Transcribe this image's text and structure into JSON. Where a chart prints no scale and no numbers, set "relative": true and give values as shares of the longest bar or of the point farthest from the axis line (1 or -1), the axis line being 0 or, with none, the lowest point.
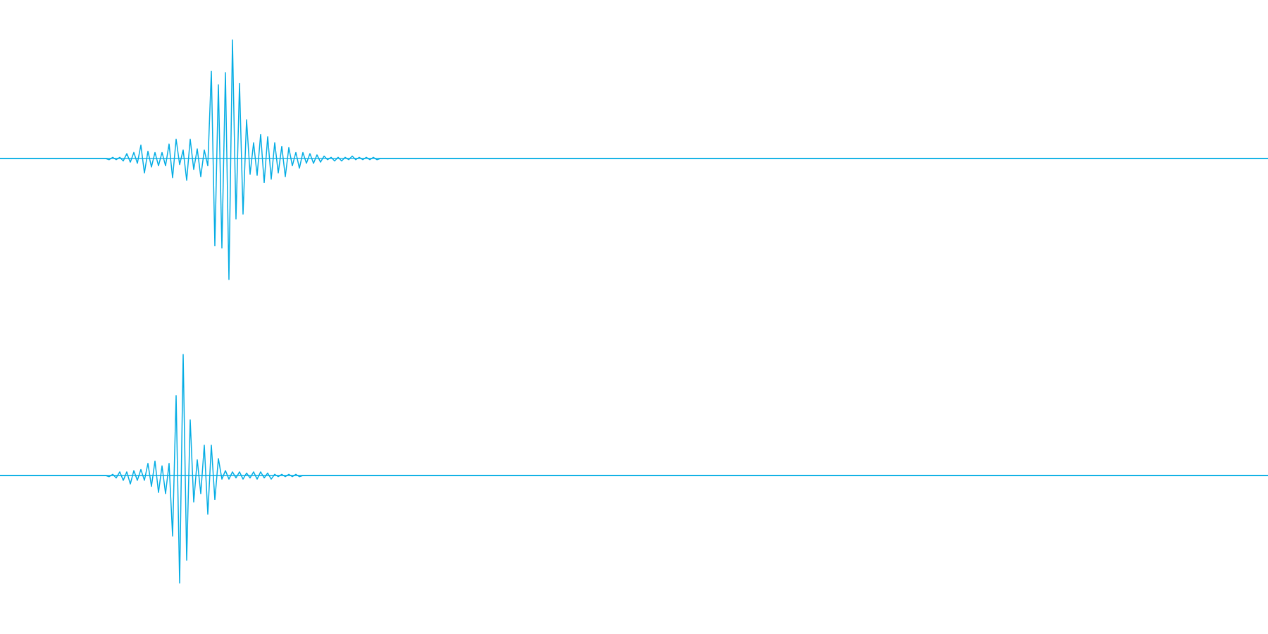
{
  "chart_data": [
    {
      "type": "line",
      "relative": true,
      "color": "#05ade4",
      "categories": [
        null,
        null,
        null,
        null,
        null,
        null,
        null,
        null,
        null,
        null,
        null,
        null,
        null,
        null,
        null,
        null,
        null,
        null,
        null,
        null,
        null,
        null,
        null,
        null,
        null,
        null,
        null,
        null,
        null,
        null,
        null,
        null,
        null,
        null,
        null,
        null,
        null,
        null,
        null,
        null,
        null,
        null,
        null,
        null,
        null,
        null,
        null,
        null,
        null,
        null,
        null,
        null,
        null,
        null,
        null,
        null,
        null,
        null,
        null,
        null,
        null,
        null,
        null,
        null,
        null,
        null,
        null,
        null,
        null,
        null,
        null,
        null,
        null,
        null,
        null,
        null,
        null,
        null,
        null,
        null,
        null,
        null,
        null,
        null,
        null,
        null,
        null,
        null,
        null,
        null,
        null,
        null,
        null,
        null,
        null,
        null,
        null,
        null,
        null,
        null,
        null,
        null,
        null,
        null,
        null,
        null,
        null,
        null,
        null,
        null,
        null,
        null,
        null,
        null,
        null,
        null,
        null,
        null,
        null,
        null,
        null,
        null,
        null,
        null,
        null,
        null,
        null,
        null,
        null,
        null,
        null,
        null,
        null,
        null,
        null,
        null,
        null,
        null,
        null,
        null,
        null,
        null,
        null,
        null,
        null,
        null,
        null,
        null,
        null,
        null,
        null,
        null,
        null,
        null,
        null,
        null,
        null,
        null,
        null,
        null,
        null,
        null,
        null,
        null,
        null,
        null,
        null,
        null,
        null,
        null,
        null,
        null,
        null,
        null,
        null,
        null,
        null,
        null,
        null,
        null,
        null,
        null,
        null,
        null,
        null,
        null,
        null,
        null,
        null,
        null,
        null,
        null,
        null,
        null,
        null,
        null,
        null,
        null,
        null,
        null,
        null,
        null,
        null,
        null,
        null,
        null,
        null,
        null,
        null,
        null,
        null,
        null,
        null,
        null,
        null,
        null,
        null,
        null,
        null,
        null,
        null,
        null,
        null,
        null,
        null,
        null,
        null,
        null,
        null,
        null,
        null,
        null,
        null,
        null,
        null,
        null,
        null,
        null,
        null,
        null,
        null,
        null,
        null,
        null,
        null,
        null,
        null,
        null,
        null,
        null,
        null,
        null,
        null,
        null,
        null,
        null,
        null,
        null,
        null,
        null,
        null,
        null,
        null,
        null,
        null,
        null,
        null,
        null,
        null,
        null,
        null,
        null,
        null,
        null,
        null,
        null,
        null,
        null,
        null,
        null,
        null,
        null,
        null,
        null,
        null,
        null,
        null,
        null,
        null,
        null,
        null,
        null,
        null,
        null,
        null,
        null,
        null,
        null,
        null,
        null,
        null,
        null,
        null,
        null,
        null,
        null,
        null,
        null,
        null,
        null,
        null,
        null,
        null,
        null,
        null,
        null,
        null,
        null,
        null,
        null,
        null,
        null,
        null,
        null,
        null,
        null,
        null,
        null,
        null,
        null,
        null,
        null,
        null,
        null,
        null,
        null,
        null,
        null,
        null,
        null,
        null,
        null,
        null,
        null,
        null,
        null,
        null,
        null,
        null,
        null,
        null,
        null,
        null,
        null,
        null,
        null,
        null,
        null,
        null,
        null,
        null
      ],
      "values": [
        0,
        0,
        0,
        0,
        0,
        0,
        0,
        0,
        0,
        0,
        0,
        0,
        0,
        0,
        0,
        0,
        0,
        0,
        0,
        0,
        0,
        0,
        0,
        0,
        0,
        0,
        0,
        0,
        0,
        0,
        0,
        -0.01,
        0.01,
        -0.01,
        0.01,
        -0.02,
        0.04,
        -0.03,
        0.05,
        -0.04,
        0.11,
        -0.12,
        0.06,
        -0.07,
        0.05,
        -0.06,
        0.05,
        -0.06,
        0.12,
        -0.16,
        0.16,
        -0.05,
        0.07,
        -0.18,
        0.16,
        -0.09,
        0.08,
        -0.15,
        0.07,
        -0.06,
        0.72,
        -0.72,
        0.61,
        -0.74,
        0.71,
        -1,
        0.98,
        -0.5,
        0.62,
        -0.46,
        0.32,
        -0.13,
        0.13,
        -0.14,
        0.2,
        -0.2,
        0.18,
        -0.17,
        0.13,
        -0.12,
        0.1,
        -0.15,
        0.09,
        -0.06,
        0.05,
        -0.08,
        0.05,
        -0.04,
        0.04,
        -0.04,
        0.03,
        -0.03,
        0.02,
        -0.01,
        0.01,
        -0.02,
        0.01,
        -0.02,
        0.01,
        -0.01,
        0.02,
        -0.01,
        0.01,
        -0.01,
        0.01,
        -0.01,
        0.01,
        -0.01,
        0,
        0,
        0,
        0,
        0,
        0,
        0,
        0,
        0,
        0,
        0,
        0,
        0,
        0,
        0,
        0,
        0,
        0,
        0,
        0,
        0,
        0,
        0,
        0,
        0,
        0,
        0,
        0,
        0,
        0,
        0,
        0,
        0,
        0,
        0,
        0,
        0,
        0,
        0,
        0,
        0,
        0,
        0,
        0,
        0,
        0,
        0,
        0,
        0,
        0,
        0,
        0,
        0,
        0,
        0,
        0,
        0,
        0,
        0,
        0,
        0,
        0,
        0,
        0,
        0,
        0,
        0,
        0,
        0,
        0,
        0,
        0,
        0,
        0,
        0,
        0,
        0,
        0,
        0,
        0,
        0,
        0,
        0,
        0,
        0,
        0,
        0,
        0,
        0,
        0,
        0,
        0,
        0,
        0,
        0,
        0,
        0,
        0,
        0,
        0,
        0,
        0,
        0,
        0,
        0,
        0,
        0,
        0,
        0,
        0,
        0,
        0,
        0,
        0,
        0,
        0,
        0,
        0,
        0,
        0,
        0,
        0,
        0,
        0,
        0,
        0,
        0,
        0,
        0,
        0,
        0,
        0,
        0,
        0,
        0,
        0,
        0,
        0,
        0,
        0,
        0,
        0,
        0,
        0,
        0,
        0,
        0,
        0,
        0,
        0,
        0,
        0,
        0,
        0,
        0,
        0,
        0,
        0,
        0,
        0,
        0,
        0,
        0,
        0,
        0,
        0,
        0,
        0,
        0,
        0,
        0,
        0,
        0,
        0,
        0,
        0,
        0,
        0,
        0,
        0,
        0,
        0,
        0,
        0,
        0,
        0,
        0,
        0,
        0,
        0,
        0,
        0,
        0,
        0,
        0,
        0,
        0,
        0,
        0,
        0,
        0,
        0,
        0,
        0,
        0,
        0,
        0,
        0,
        0,
        0,
        0,
        0,
        0,
        0,
        0,
        0,
        0,
        0,
        0,
        0,
        0,
        0,
        0,
        0,
        0,
        0,
        0,
        0,
        0,
        0,
        0,
        0,
        0,
        0,
        0,
        0,
        0,
        0,
        0,
        0,
        0,
        0,
        0,
        0,
        0,
        0,
        0,
        0,
        0,
        0,
        0,
        0,
        0
      ]
    },
    {
      "type": "line",
      "relative": true,
      "color": "#05ade4",
      "categories": [
        null,
        null,
        null,
        null,
        null,
        null,
        null,
        null,
        null,
        null,
        null,
        null,
        null,
        null,
        null,
        null,
        null,
        null,
        null,
        null,
        null,
        null,
        null,
        null,
        null,
        null,
        null,
        null,
        null,
        null,
        null,
        null,
        null,
        null,
        null,
        null,
        null,
        null,
        null,
        null,
        null,
        null,
        null,
        null,
        null,
        null,
        null,
        null,
        null,
        null,
        null,
        null,
        null,
        null,
        null,
        null,
        null,
        null,
        null,
        null,
        null,
        null,
        null,
        null,
        null,
        null,
        null,
        null,
        null,
        null,
        null,
        null,
        null,
        null,
        null,
        null,
        null,
        null,
        null,
        null,
        null,
        null,
        null,
        null,
        null,
        null,
        null,
        null,
        null,
        null,
        null,
        null,
        null,
        null,
        null,
        null,
        null,
        null,
        null,
        null,
        null,
        null,
        null,
        null,
        null,
        null,
        null,
        null,
        null,
        null,
        null,
        null,
        null,
        null,
        null,
        null,
        null,
        null,
        null,
        null,
        null,
        null,
        null,
        null,
        null,
        null,
        null,
        null,
        null,
        null,
        null,
        null,
        null,
        null,
        null,
        null,
        null,
        null,
        null,
        null,
        null,
        null,
        null,
        null,
        null,
        null,
        null,
        null,
        null,
        null,
        null,
        null,
        null,
        null,
        null,
        null,
        null,
        null,
        null,
        null,
        null,
        null,
        null,
        null,
        null,
        null,
        null,
        null,
        null,
        null,
        null,
        null,
        null,
        null,
        null,
        null,
        null,
        null,
        null,
        null,
        null,
        null,
        null,
        null,
        null,
        null,
        null,
        null,
        null,
        null,
        null,
        null,
        null,
        null,
        null,
        null,
        null,
        null,
        null,
        null,
        null,
        null,
        null,
        null,
        null,
        null,
        null,
        null,
        null,
        null,
        null,
        null,
        null,
        null,
        null,
        null,
        null,
        null,
        null,
        null,
        null,
        null,
        null,
        null,
        null,
        null,
        null,
        null,
        null,
        null,
        null,
        null,
        null,
        null,
        null,
        null,
        null,
        null,
        null,
        null,
        null,
        null,
        null,
        null,
        null,
        null,
        null,
        null,
        null,
        null,
        null,
        null,
        null,
        null,
        null,
        null,
        null,
        null,
        null,
        null,
        null,
        null,
        null,
        null,
        null,
        null,
        null,
        null,
        null,
        null,
        null,
        null,
        null,
        null,
        null,
        null,
        null,
        null,
        null,
        null,
        null,
        null,
        null,
        null,
        null,
        null,
        null,
        null,
        null,
        null,
        null,
        null,
        null,
        null,
        null,
        null,
        null,
        null,
        null,
        null,
        null,
        null,
        null,
        null,
        null,
        null,
        null,
        null,
        null,
        null,
        null,
        null,
        null,
        null,
        null,
        null,
        null,
        null,
        null,
        null,
        null,
        null,
        null,
        null,
        null,
        null,
        null,
        null,
        null,
        null,
        null,
        null,
        null,
        null,
        null,
        null,
        null,
        null,
        null,
        null,
        null,
        null,
        null,
        null,
        null,
        null,
        null,
        null,
        null,
        null,
        null,
        null,
        null,
        null,
        null,
        null,
        null,
        null,
        null,
        null,
        null
      ],
      "values": [
        0,
        0,
        0,
        0,
        0,
        0,
        0,
        0,
        0,
        0,
        0,
        0,
        0,
        0,
        0,
        0,
        0,
        0,
        0,
        0,
        0,
        0,
        0,
        0,
        0,
        0,
        0,
        0,
        0,
        0,
        0,
        -0.01,
        0.01,
        -0.02,
        0.03,
        -0.04,
        0.03,
        -0.07,
        0.04,
        -0.04,
        0.05,
        -0.04,
        0.1,
        -0.09,
        0.12,
        -0.14,
        0.08,
        -0.15,
        0.1,
        -0.5,
        0.66,
        -0.89,
        1,
        -0.7,
        0.46,
        -0.22,
        0.13,
        -0.15,
        0.25,
        -0.32,
        0.25,
        -0.2,
        0.14,
        -0.03,
        0.04,
        -0.03,
        0.03,
        -0.02,
        0.03,
        -0.03,
        0.02,
        -0.02,
        0.03,
        -0.03,
        0.03,
        -0.02,
        0.02,
        -0.03,
        0.01,
        -0.01,
        0.01,
        -0.01,
        0.01,
        -0.01,
        0.01,
        -0.01,
        0,
        0,
        0,
        0,
        0,
        0,
        0,
        0,
        0,
        0,
        0,
        0,
        0,
        0,
        0,
        0,
        0,
        0,
        0,
        0,
        0,
        0,
        0,
        0,
        0,
        0,
        0,
        0,
        0,
        0,
        0,
        0,
        0,
        0,
        0,
        0,
        0,
        0,
        0,
        0,
        0,
        0,
        0,
        0,
        0,
        0,
        0,
        0,
        0,
        0,
        0,
        0,
        0,
        0,
        0,
        0,
        0,
        0,
        0,
        0,
        0,
        0,
        0,
        0,
        0,
        0,
        0,
        0,
        0,
        0,
        0,
        0,
        0,
        0,
        0,
        0,
        0,
        0,
        0,
        0,
        0,
        0,
        0,
        0,
        0,
        0,
        0,
        0,
        0,
        0,
        0,
        0,
        0,
        0,
        0,
        0,
        0,
        0,
        0,
        0,
        0,
        0,
        0,
        0,
        0,
        0,
        0,
        0,
        0,
        0,
        0,
        0,
        0,
        0,
        0,
        0,
        0,
        0,
        0,
        0,
        0,
        0,
        0,
        0,
        0,
        0,
        0,
        0,
        0,
        0,
        0,
        0,
        0,
        0,
        0,
        0,
        0,
        0,
        0,
        0,
        0,
        0,
        0,
        0,
        0,
        0,
        0,
        0,
        0,
        0,
        0,
        0,
        0,
        0,
        0,
        0,
        0,
        0,
        0,
        0,
        0,
        0,
        0,
        0,
        0,
        0,
        0,
        0,
        0,
        0,
        0,
        0,
        0,
        0,
        0,
        0,
        0,
        0,
        0,
        0,
        0,
        0,
        0,
        0,
        0,
        0,
        0,
        0,
        0,
        0,
        0,
        0,
        0,
        0,
        0,
        0,
        0,
        0,
        0,
        0,
        0,
        0,
        0,
        0,
        0,
        0,
        0,
        0,
        0,
        0,
        0,
        0,
        0,
        0,
        0,
        0,
        0,
        0,
        0,
        0,
        0,
        0,
        0,
        0,
        0,
        0,
        0,
        0,
        0,
        0,
        0,
        0,
        0,
        0,
        0,
        0,
        0,
        0,
        0,
        0,
        0,
        0,
        0,
        0,
        0,
        0,
        0,
        0,
        0,
        0,
        0,
        0,
        0,
        0,
        0,
        0,
        0,
        0,
        0,
        0,
        0,
        0,
        0,
        0,
        0,
        0,
        0,
        0,
        0,
        0,
        0,
        0,
        0,
        0,
        0
      ]
    }
  ]
}
